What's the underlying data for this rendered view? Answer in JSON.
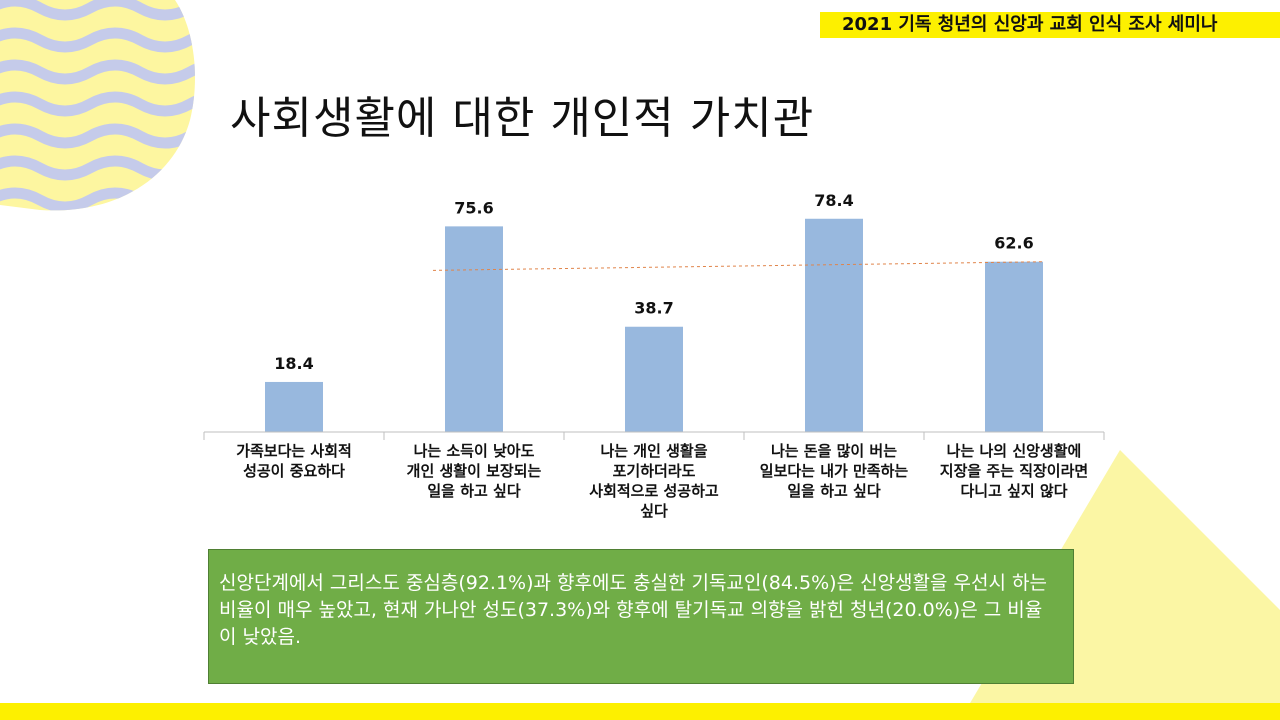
{
  "header": {
    "tag": "2021 기독 청년의 신앙과 교회 인식 조사 세미나"
  },
  "slide": {
    "title": "사회생활에 대한 개인적 가치관"
  },
  "chart_data": {
    "type": "bar",
    "categories": [
      "가족보다는 사회적 성공이 중요하다",
      "나는 소득이 낮아도 개인 생활이 보장되는 일을 하고 싶다",
      "나는 개인 생활을 포기하더라도 사회적으로 성공하고 싶다",
      "나는 돈을 많이 버는 일보다는 내가 만족하는 일을 하고 싶다",
      "나는 나의 신앙생활에 지장을 주는 직장이라면 다니고 싶지 않다"
    ],
    "label_lines": [
      [
        "가족보다는 사회적",
        "성공이 중요하다"
      ],
      [
        "나는 소득이 낮아도",
        "개인 생활이 보장되는",
        "일을 하고 싶다"
      ],
      [
        "나는 개인 생활을",
        "포기하더라도",
        "사회적으로 성공하고",
        "싶다"
      ],
      [
        "나는 돈을 많이 버는",
        "일보다는 내가 만족하는",
        "일을 하고 싶다"
      ],
      [
        "나는 나의 신앙생활에",
        "지장을 주는 직장이라면",
        "다니고 싶지 않다"
      ]
    ],
    "values": [
      18.4,
      75.6,
      38.7,
      78.4,
      62.6
    ],
    "value_labels": [
      "18.4",
      "75.6",
      "38.7",
      "78.4",
      "62.6"
    ],
    "reference_line": {
      "style": "dashed",
      "from_category": 1,
      "to_category": 4
    },
    "title": "",
    "xlabel": "",
    "ylabel": "",
    "ylim": [
      0,
      100
    ],
    "grid": false,
    "bar_color": "#98b8de",
    "reference_color": "#e0844a"
  },
  "note": {
    "text": "신앙단계에서 그리스도 중심층(92.1%)과 향후에도 충실한 기독교인(84.5%)은 신앙생활을 우선시 하는 비율이 매우 높았고, 현재 가나안 성도(37.3%)와 향후에 탈기독교 의향을 밝힌 청년(20.0%)은 그 비율이 낮았음."
  },
  "colors": {
    "accent_yellow": "#fdf000",
    "note_green": "#70ad47",
    "wave_purple": "#c5cbea"
  }
}
